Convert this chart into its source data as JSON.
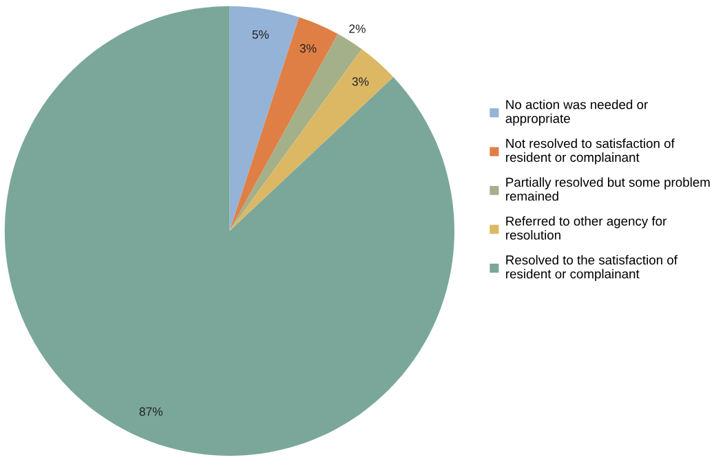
{
  "chart_data": {
    "type": "pie",
    "categories": [
      "No action was needed or appropriate",
      "Not resolved to satisfaction of resident or complainant",
      "Partially resolved but some problem remained",
      "Referred to other agency for resolution",
      "Resolved to the satisfaction of resident or complainant"
    ],
    "values": [
      5,
      3,
      2,
      3,
      87
    ],
    "colors": [
      "#95b3d7",
      "#e07f45",
      "#a3b08a",
      "#dcb865",
      "#7aa79a"
    ],
    "value_labels": [
      "5%",
      "3%",
      "2%",
      "3%",
      "87%"
    ],
    "legend": "right"
  }
}
